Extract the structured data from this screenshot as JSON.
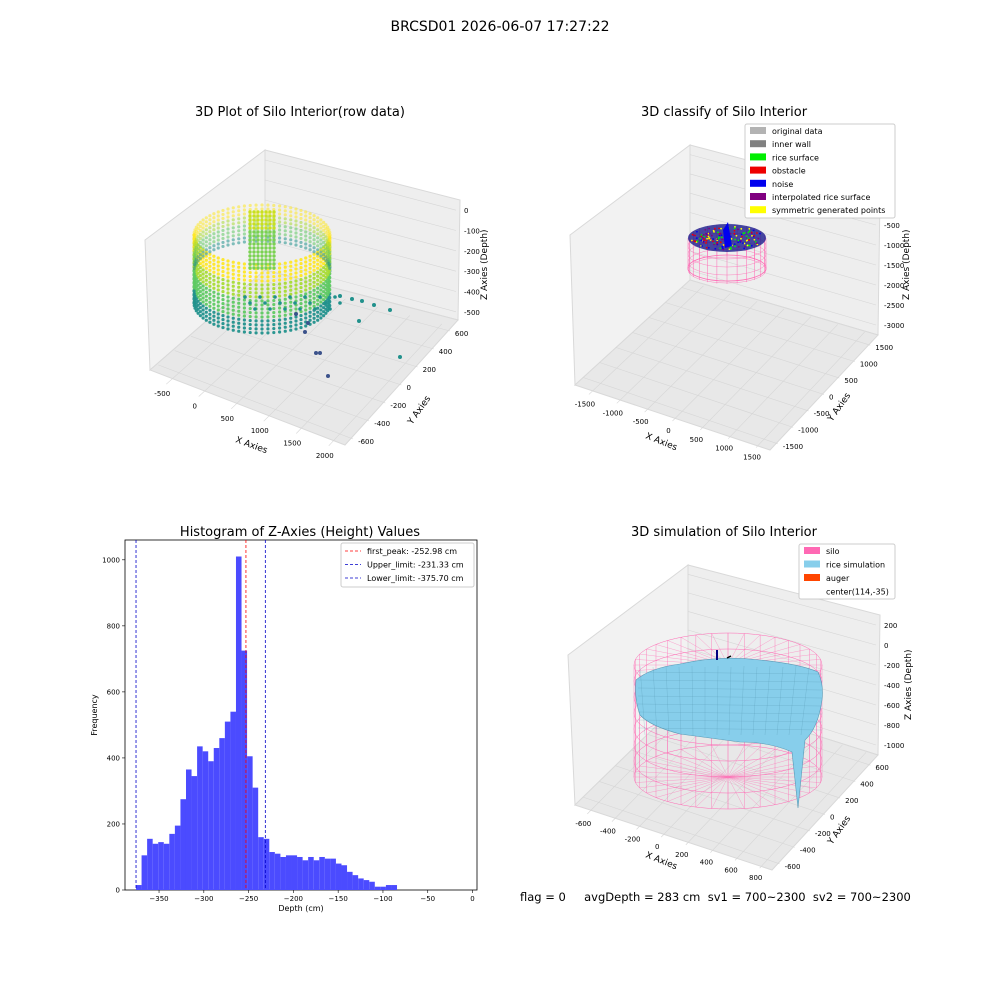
{
  "suptitle": "BRCSD01 2026-06-07 17:27:22",
  "status_text": "flag = 0     avgDepth = 283 cm  sv1 = 700~2300  sv2 = 700~2300",
  "colors": {
    "pane_light": "#f2f2f2",
    "pane_dark": "#e6e6e6",
    "grid": "#d6d6d6",
    "hist_bar": "#4b4bff",
    "peak_line": "#ff0000",
    "limit_line": "#0000c8",
    "silo": "#ff69b4",
    "rice_simulation": "#87ceeb",
    "auger": "#ff4500"
  },
  "chart_data": [
    {
      "type": "scatter",
      "title": "3D Plot of Silo Interior(row data)",
      "xlabel": "X Axies",
      "ylabel": "Y Axies",
      "zlabel": "Z Axies (Depth)",
      "x_ticks": [
        "-500",
        "0",
        "500",
        "1000",
        "1500",
        "2000"
      ],
      "y_ticks": [
        "-600",
        "-400",
        "-200",
        "0",
        "200",
        "400",
        "600"
      ],
      "z_ticks": [
        "0",
        "-100",
        "-200",
        "-300",
        "-400",
        "-500"
      ],
      "xlim": [
        -600,
        2000
      ],
      "ylim": [
        -650,
        650
      ],
      "zlim": [
        -560,
        10
      ],
      "colormap": "viridis (by depth)",
      "grid": true
    },
    {
      "type": "scatter",
      "title": "3D classify of Silo Interior",
      "xlabel": "X Axies",
      "ylabel": "Y Axies",
      "zlabel": "Z Axies (Depth)",
      "x_ticks": [
        "-1500",
        "-1000",
        "-500",
        "0",
        "500",
        "1000",
        "1500"
      ],
      "y_ticks": [
        "-1500",
        "-1000",
        "-500",
        "0",
        "500",
        "1000",
        "1500"
      ],
      "z_ticks": [
        "0",
        "-500",
        "-1000",
        "-1500",
        "-2000",
        "-2500",
        "-3000"
      ],
      "legend_position": "top-right",
      "legend": [
        {
          "label": "original data",
          "color": "#b3b3b3"
        },
        {
          "label": "inner wall",
          "color": "#808080"
        },
        {
          "label": "rice surface",
          "color": "#00ee00"
        },
        {
          "label": "obstacle",
          "color": "#ee0000"
        },
        {
          "label": "noise",
          "color": "#0000ee"
        },
        {
          "label": "interpolated rice surface",
          "color": "#800080"
        },
        {
          "label": "symmetric generated points",
          "color": "#ffff00"
        }
      ],
      "grid": true
    },
    {
      "type": "bar",
      "title": "Histogram of Z-Axies (Height) Values",
      "xlabel": "Depth (cm)",
      "ylabel": "Frequency",
      "xlim": [
        -388,
        5
      ],
      "ylim": [
        0,
        1060
      ],
      "x_ticks": [
        -350,
        -300,
        -250,
        -200,
        -150,
        -100,
        -50,
        0
      ],
      "y_ticks": [
        0,
        200,
        400,
        600,
        800,
        1000
      ],
      "bin_start": -375.7,
      "bin_width": 6.2,
      "values": [
        15,
        105,
        155,
        140,
        145,
        140,
        170,
        195,
        275,
        365,
        345,
        435,
        420,
        390,
        430,
        460,
        510,
        540,
        1010,
        725,
        405,
        310,
        160,
        155,
        115,
        110,
        100,
        105,
        105,
        100,
        90,
        100,
        90,
        100,
        95,
        95,
        80,
        75,
        55,
        45,
        35,
        30,
        25,
        10,
        10,
        15,
        15
      ],
      "vlines": [
        {
          "label": "first_peak: -252.98 cm",
          "x": -252.98,
          "color": "#ff0000"
        },
        {
          "label": "Upper_limit: -231.33 cm",
          "x": -231.33,
          "color": "#0000c8"
        },
        {
          "label": "Lower_limit: -375.70 cm",
          "x": -375.7,
          "color": "#0000c8"
        }
      ],
      "legend_position": "top-right",
      "grid": false
    },
    {
      "type": "area",
      "title": "3D simulation of Silo Interior",
      "xlabel": "X Axies",
      "ylabel": "Y Axies",
      "zlabel": "Z Axies (Depth)",
      "x_ticks": [
        "-600",
        "-400",
        "-200",
        "0",
        "200",
        "400",
        "600",
        "800"
      ],
      "y_ticks": [
        "-600",
        "-400",
        "-200",
        "0",
        "200",
        "400",
        "600"
      ],
      "z_ticks": [
        "200",
        "0",
        "-200",
        "-400",
        "-600",
        "-800",
        "-1000"
      ],
      "legend_position": "top-right",
      "legend": [
        {
          "label": "silo",
          "color": "#ff69b4"
        },
        {
          "label": "rice simulation",
          "color": "#87ceeb"
        },
        {
          "label": "auger",
          "color": "#ff4500"
        },
        {
          "label": "center(114,-35)",
          "color": "none"
        }
      ],
      "grid": true
    }
  ]
}
